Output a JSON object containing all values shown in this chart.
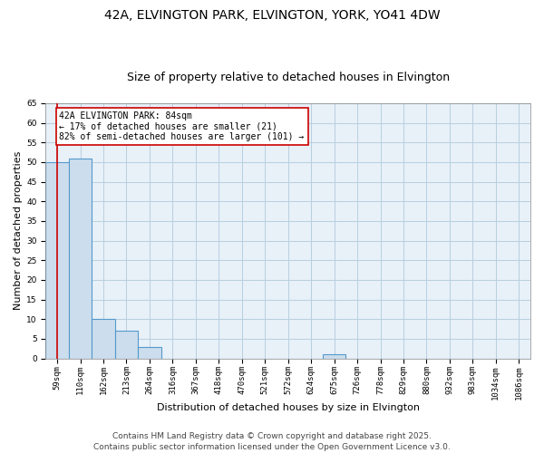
{
  "title": "42A, ELVINGTON PARK, ELVINGTON, YORK, YO41 4DW",
  "subtitle": "Size of property relative to detached houses in Elvington",
  "xlabel": "Distribution of detached houses by size in Elvington",
  "ylabel": "Number of detached properties",
  "bins": [
    "59sqm",
    "110sqm",
    "162sqm",
    "213sqm",
    "264sqm",
    "316sqm",
    "367sqm",
    "418sqm",
    "470sqm",
    "521sqm",
    "572sqm",
    "624sqm",
    "675sqm",
    "726sqm",
    "778sqm",
    "829sqm",
    "880sqm",
    "932sqm",
    "983sqm",
    "1034sqm",
    "1086sqm"
  ],
  "values": [
    50,
    51,
    10,
    7,
    3,
    0,
    0,
    0,
    0,
    0,
    0,
    0,
    1,
    0,
    0,
    0,
    0,
    0,
    0,
    0,
    0
  ],
  "bar_color": "#ccdded",
  "bar_edge_color": "#5599cc",
  "bar_linewidth": 0.8,
  "grid_color": "#b8cfe0",
  "background_color": "#e8f0f8",
  "annotation_box_text": "42A ELVINGTON PARK: 84sqm\n← 17% of detached houses are smaller (21)\n82% of semi-detached houses are larger (101) →",
  "annotation_line_color": "#cc0000",
  "ylim": [
    0,
    65
  ],
  "yticks": [
    0,
    5,
    10,
    15,
    20,
    25,
    30,
    35,
    40,
    45,
    50,
    55,
    60,
    65
  ],
  "footer_text": "Contains HM Land Registry data © Crown copyright and database right 2025.\nContains public sector information licensed under the Open Government Licence v3.0.",
  "title_fontsize": 10,
  "subtitle_fontsize": 9,
  "xlabel_fontsize": 8,
  "ylabel_fontsize": 8,
  "tick_fontsize": 6.5,
  "annotation_fontsize": 7,
  "footer_fontsize": 6.5
}
